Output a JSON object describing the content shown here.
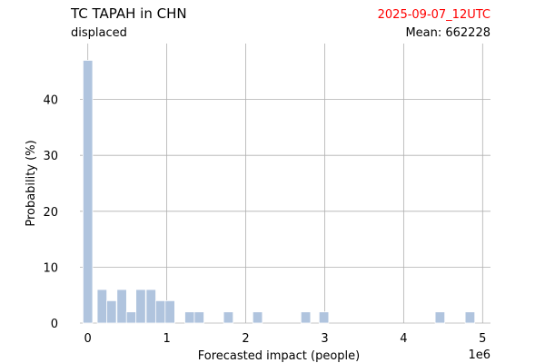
{
  "header": {
    "title": "TC TAPAH in CHN",
    "subtitle": "displaced",
    "date": "2025-09-07_12UTC",
    "mean": "Mean: 662228"
  },
  "colors": {
    "bar": "#b0c4de",
    "date": "#ff0000",
    "grid": "#b0b0b0"
  },
  "chart_data": {
    "type": "bar",
    "xlabel": "Forecasted impact (people)",
    "ylabel": "Probability (%)",
    "x_offset_label": "1e6",
    "xlim": [
      -0.1,
      5.1
    ],
    "ylim": [
      0,
      50
    ],
    "x_ticks": [
      0,
      1,
      2,
      3,
      4,
      5
    ],
    "x_tick_labels": [
      "0",
      "1",
      "2",
      "3",
      "4",
      "5"
    ],
    "y_ticks": [
      0,
      10,
      20,
      30,
      40
    ],
    "y_tick_labels": [
      "0",
      "10",
      "20",
      "30",
      "40"
    ],
    "grid": true,
    "bin_width": 0.122,
    "bins": [
      {
        "x": 0.0,
        "value": 47
      },
      {
        "x": 0.18,
        "value": 6
      },
      {
        "x": 0.3,
        "value": 4
      },
      {
        "x": 0.43,
        "value": 6
      },
      {
        "x": 0.55,
        "value": 2
      },
      {
        "x": 0.67,
        "value": 6
      },
      {
        "x": 0.8,
        "value": 6
      },
      {
        "x": 0.92,
        "value": 4
      },
      {
        "x": 1.04,
        "value": 4
      },
      {
        "x": 1.29,
        "value": 2
      },
      {
        "x": 1.41,
        "value": 2
      },
      {
        "x": 1.78,
        "value": 2
      },
      {
        "x": 2.15,
        "value": 2
      },
      {
        "x": 2.76,
        "value": 2
      },
      {
        "x": 2.99,
        "value": 2
      },
      {
        "x": 4.46,
        "value": 2
      },
      {
        "x": 4.84,
        "value": 2
      }
    ]
  }
}
